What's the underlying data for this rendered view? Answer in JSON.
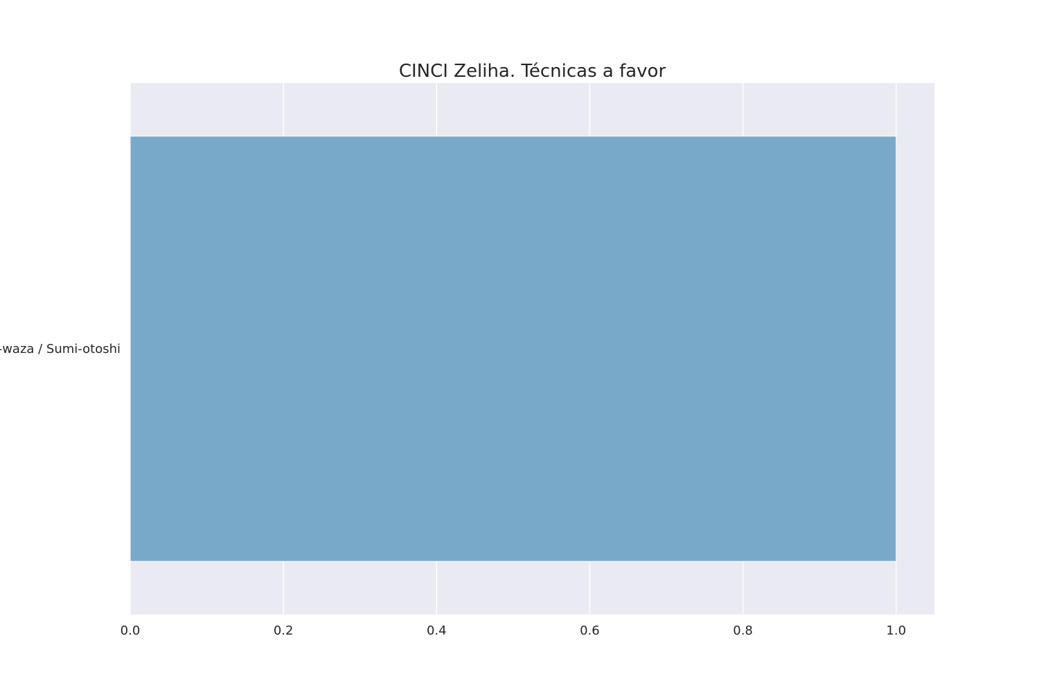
{
  "chart_data": {
    "type": "bar",
    "orientation": "horizontal",
    "title": "CINCI Zeliha. Técnicas a favor",
    "xlabel": "",
    "ylabel": "",
    "categories": [
      "Ma-sutemi-waza / Sumi-otoshi"
    ],
    "values": [
      1
    ],
    "xlim": [
      0,
      1.05
    ],
    "xticks": [
      0.0,
      0.2,
      0.4,
      0.6,
      0.8,
      1.0
    ],
    "xtick_labels": [
      "0.0",
      "0.2",
      "0.4",
      "0.6",
      "0.8",
      "1.0"
    ],
    "grid": true,
    "legend": "none",
    "colors": {
      "plot_background": "#eaeaf2",
      "grid": "#ffffff",
      "bar": "#79a9c8",
      "text": "#262626"
    }
  }
}
